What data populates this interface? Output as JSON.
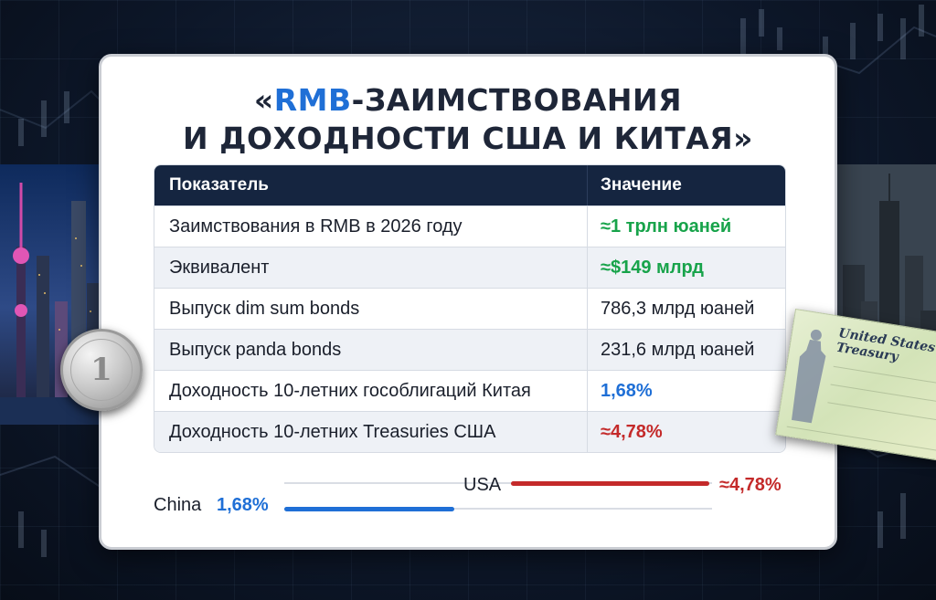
{
  "title": {
    "line1_prefix": "«",
    "line1_accent": "RMB",
    "line1_rest": "-ЗАИМСТВОВАНИЯ",
    "line2": "И ДОХОДНОСТИ США И КИТАЯ»"
  },
  "table": {
    "headers": [
      "Показатель",
      "Значение"
    ],
    "rows": [
      {
        "label": "Заимствования в RMB в 2026 году",
        "value": "≈1 трлн юаней",
        "style": "green"
      },
      {
        "label": "Эквивалент",
        "value": "≈$149 млрд",
        "style": "green"
      },
      {
        "label": "Выпуск dim sum bonds",
        "value": "786,3 млрд юаней",
        "style": "plain"
      },
      {
        "label": "Выпуск panda bonds",
        "value": "231,6 млрд юаней",
        "style": "plain"
      },
      {
        "label": "Доходность 10-летних гособлигаций Китая",
        "value": "1,68%",
        "style": "blue"
      },
      {
        "label": "Доходность 10-летних Treasuries США",
        "value": "≈4,78%",
        "style": "red"
      }
    ]
  },
  "comparison": {
    "china": {
      "label": "China",
      "value": "1,68%",
      "level_pct": 1.68
    },
    "usa": {
      "label": "USA",
      "value": "≈4,78%",
      "level_pct": 4.78
    }
  },
  "decor": {
    "coin": {
      "denomination": "1"
    },
    "check": {
      "title": "United States Treasury"
    }
  },
  "colors": {
    "accent_blue": "#1f6fd6",
    "green": "#17a34a",
    "red": "#c42a2a",
    "header_navy": "#152540"
  }
}
